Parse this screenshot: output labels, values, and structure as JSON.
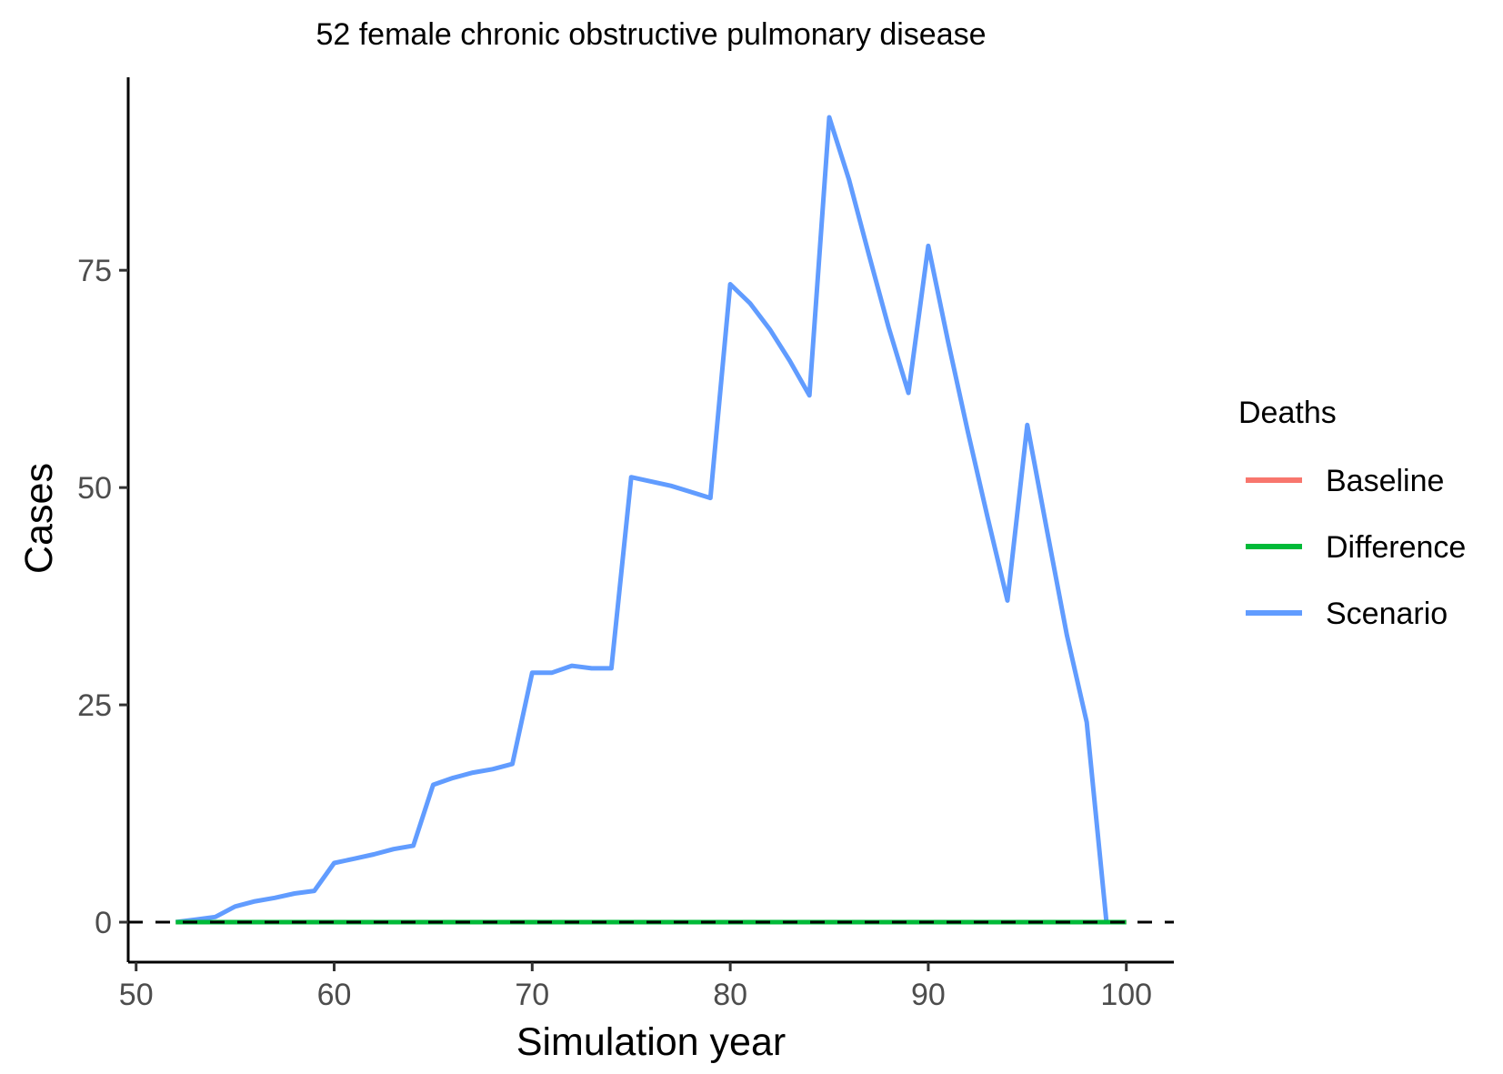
{
  "chart_data": {
    "type": "line",
    "title": "52 female chronic obstructive pulmonary disease",
    "xlabel": "Simulation year",
    "ylabel": "Cases",
    "xlim": [
      49.6,
      102.4
    ],
    "ylim": [
      -4.6,
      97.2
    ],
    "x_ticks": [
      50,
      60,
      70,
      80,
      90,
      100
    ],
    "y_ticks": [
      0,
      25,
      50,
      75
    ],
    "grid": false,
    "reference_line": {
      "y": 0,
      "style": "dashed",
      "color": "#000000"
    },
    "legend": {
      "title": "Deaths",
      "position": "right"
    },
    "series": [
      {
        "name": "Baseline",
        "color": "#F8766D",
        "x": [
          52,
          53,
          54,
          55,
          56,
          57,
          58,
          59,
          60,
          61,
          62,
          63,
          64,
          65,
          66,
          67,
          68,
          69,
          70,
          71,
          72,
          73,
          74,
          75,
          76,
          77,
          78,
          79,
          80,
          81,
          82,
          83,
          84,
          85,
          86,
          87,
          88,
          89,
          90,
          91,
          92,
          93,
          94,
          95,
          96,
          97,
          98,
          99,
          100
        ],
        "values": [
          0,
          0,
          0,
          0,
          0,
          0,
          0,
          0,
          0,
          0,
          0,
          0,
          0,
          0,
          0,
          0,
          0,
          0,
          0,
          0,
          0,
          0,
          0,
          0,
          0,
          0,
          0,
          0,
          0,
          0,
          0,
          0,
          0,
          0,
          0,
          0,
          0,
          0,
          0,
          0,
          0,
          0,
          0,
          0,
          0,
          0,
          0,
          0,
          0
        ]
      },
      {
        "name": "Scenario",
        "color": "#619CFF",
        "x": [
          52,
          53,
          54,
          55,
          56,
          57,
          58,
          59,
          60,
          61,
          62,
          63,
          64,
          65,
          66,
          67,
          68,
          69,
          70,
          71,
          72,
          73,
          74,
          75,
          76,
          77,
          78,
          79,
          80,
          81,
          82,
          83,
          84,
          85,
          86,
          87,
          88,
          89,
          90,
          91,
          92,
          93,
          94,
          95,
          96,
          97,
          98,
          99
        ],
        "values": [
          0,
          0.3,
          0.6,
          1.8,
          2.4,
          2.8,
          3.3,
          3.6,
          6.8,
          7.3,
          7.8,
          8.4,
          8.8,
          15.8,
          16.6,
          17.2,
          17.6,
          18.2,
          28.7,
          28.7,
          29.5,
          29.2,
          29.2,
          51.2,
          50.7,
          50.2,
          49.5,
          48.8,
          73.4,
          71.2,
          68.2,
          64.6,
          60.6,
          92.6,
          85.4,
          76.8,
          68.4,
          60.9,
          77.8,
          66.8,
          56.4,
          46.5,
          37.0,
          57.2,
          45.0,
          33.0,
          23.0,
          0
        ]
      },
      {
        "name": "Difference",
        "color": "#00BA38",
        "x": [
          52,
          53,
          54,
          55,
          56,
          57,
          58,
          59,
          60,
          61,
          62,
          63,
          64,
          65,
          66,
          67,
          68,
          69,
          70,
          71,
          72,
          73,
          74,
          75,
          76,
          77,
          78,
          79,
          80,
          81,
          82,
          83,
          84,
          85,
          86,
          87,
          88,
          89,
          90,
          91,
          92,
          93,
          94,
          95,
          96,
          97,
          98,
          99,
          100
        ],
        "values": [
          0,
          0,
          0,
          0,
          0,
          0,
          0,
          0,
          0,
          0,
          0,
          0,
          0,
          0,
          0,
          0,
          0,
          0,
          0,
          0,
          0,
          0,
          0,
          0,
          0,
          0,
          0,
          0,
          0,
          0,
          0,
          0,
          0,
          0,
          0,
          0,
          0,
          0,
          0,
          0,
          0,
          0,
          0,
          0,
          0,
          0,
          0,
          0,
          0
        ]
      }
    ],
    "legend_entries": [
      {
        "label": "Baseline",
        "color": "#F8766D"
      },
      {
        "label": "Difference",
        "color": "#00BA38"
      },
      {
        "label": "Scenario",
        "color": "#619CFF"
      }
    ]
  }
}
